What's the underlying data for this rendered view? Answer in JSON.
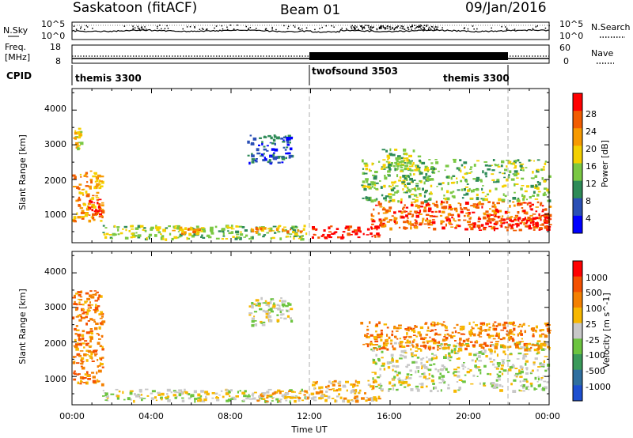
{
  "header": {
    "title": "Saskatoon (fitACF)",
    "beam": "Beam 01",
    "date": "09/Jan/2016"
  },
  "noise_panel": {
    "left_label": "N.Sky",
    "left_ticks": [
      "10^5",
      "10^0"
    ],
    "right_ticks": [
      "10^5",
      "10^0"
    ],
    "right_label": "N.Search"
  },
  "freq_panel": {
    "left_label_line1": "Freq.",
    "left_label_line2": "[MHz]",
    "left_ticks": [
      "18",
      "8"
    ],
    "right_ticks": [
      "60",
      "0"
    ],
    "right_label": "Nave"
  },
  "cpid_panel": {
    "label": "CPID",
    "programs": [
      {
        "name": "themis 3300",
        "start_hour": 0,
        "end_hour": 12
      },
      {
        "name": "twofsound 3503",
        "start_hour": 12,
        "end_hour": 22
      },
      {
        "name": "themis 3300",
        "start_hour": 22,
        "end_hour": 24
      }
    ]
  },
  "time_axis": {
    "label": "Time UT",
    "tick_labels": [
      "00:00",
      "04:00",
      "08:00",
      "12:00",
      "16:00",
      "20:00",
      "00:00"
    ]
  },
  "range_axis": {
    "label": "Slant Range [km]",
    "tick_labels": [
      "1000",
      "2000",
      "3000",
      "4000"
    ]
  },
  "chart_data": [
    {
      "type": "heatmap",
      "name": "power",
      "xlabel": "Time UT",
      "ylabel": "Slant Range [km]",
      "xlim_hours": [
        0,
        24
      ],
      "ylim_km": [
        180,
        4620
      ],
      "x_ticks_hours": [
        0,
        4,
        8,
        12,
        16,
        20,
        24
      ],
      "y_ticks_km": [
        1000,
        2000,
        3000,
        4000
      ],
      "colorbar": {
        "label": "Power [dB]",
        "tick_labels": [
          "4",
          "8",
          "12",
          "16",
          "20",
          "24",
          "28"
        ],
        "colors": [
          "#0000ff",
          "#2a4fb5",
          "#2e8b57",
          "#7ac843",
          "#f4d000",
          "#f79a00",
          "#f25c00",
          "#ff0000"
        ]
      },
      "regions": [
        {
          "t": [
            0.0,
            0.5
          ],
          "r": [
            2900,
            3500
          ],
          "level": 4
        },
        {
          "t": [
            0.0,
            1.5
          ],
          "r": [
            800,
            2300
          ],
          "level": 5
        },
        {
          "t": [
            0.8,
            1.4
          ],
          "r": [
            950,
            1450
          ],
          "level": 7
        },
        {
          "t": [
            1.5,
            11.8
          ],
          "r": [
            300,
            700
          ],
          "level": 3
        },
        {
          "t": [
            5.0,
            6.5
          ],
          "r": [
            450,
            650
          ],
          "level": 5
        },
        {
          "t": [
            9.0,
            11.5
          ],
          "r": [
            500,
            650
          ],
          "level": 5
        },
        {
          "t": [
            8.8,
            11.0
          ],
          "r": [
            2500,
            3300
          ],
          "level": 1
        },
        {
          "t": [
            12.0,
            15.5
          ],
          "r": [
            350,
            700
          ],
          "level": 7
        },
        {
          "t": [
            15.0,
            24.0
          ],
          "r": [
            600,
            1400
          ],
          "level": 6
        },
        {
          "t": [
            20.0,
            24.0
          ],
          "r": [
            550,
            1000
          ],
          "level": 7
        },
        {
          "t": [
            14.5,
            24.0
          ],
          "r": [
            1400,
            2600
          ],
          "level": 3
        },
        {
          "t": [
            15.5,
            17.5
          ],
          "r": [
            2300,
            2900
          ],
          "level": 3
        }
      ]
    },
    {
      "type": "heatmap",
      "name": "velocity",
      "xlabel": "Time UT",
      "ylabel": "Slant Range [km]",
      "xlim_hours": [
        0,
        24
      ],
      "ylim_km": [
        180,
        4620
      ],
      "x_ticks_hours": [
        0,
        4,
        8,
        12,
        16,
        20,
        24
      ],
      "y_ticks_km": [
        1000,
        2000,
        3000,
        4000
      ],
      "colorbar": {
        "label": "Velocity [m s^-1]",
        "tick_labels": [
          "1000",
          "500",
          "100",
          "25",
          "-25",
          "-100",
          "-500",
          "-1000"
        ],
        "colors": [
          "#1d4fd0",
          "#2f6f9f",
          "#3a9a5a",
          "#6cc440",
          "#c8c8c8",
          "#f7b700",
          "#f48000",
          "#f45000",
          "#ff0000"
        ]
      },
      "regions": [
        {
          "t": [
            0.0,
            1.5
          ],
          "r": [
            800,
            3500
          ],
          "level": 6
        },
        {
          "t": [
            1.5,
            11.8
          ],
          "r": [
            300,
            650
          ],
          "level": 4
        },
        {
          "t": [
            9.0,
            11.8
          ],
          "r": [
            300,
            600
          ],
          "level": 5
        },
        {
          "t": [
            8.8,
            11.0
          ],
          "r": [
            2500,
            3300
          ],
          "level": 4
        },
        {
          "t": [
            12.0,
            15.5
          ],
          "r": [
            300,
            900
          ],
          "level": 5
        },
        {
          "t": [
            15.0,
            24.0
          ],
          "r": [
            600,
            2000
          ],
          "level": 4
        },
        {
          "t": [
            14.5,
            24.0
          ],
          "r": [
            1800,
            2600
          ],
          "level": 6
        }
      ]
    },
    {
      "type": "line",
      "name": "noise",
      "ylabel": "N.Sky",
      "y_scale": "log",
      "ylim": [
        1,
        100000
      ]
    },
    {
      "type": "line",
      "name": "frequency",
      "ylabel": "Freq. [MHz]",
      "ylim": [
        8,
        18
      ],
      "y2label": "Nave",
      "y2lim": [
        0,
        60
      ]
    }
  ]
}
